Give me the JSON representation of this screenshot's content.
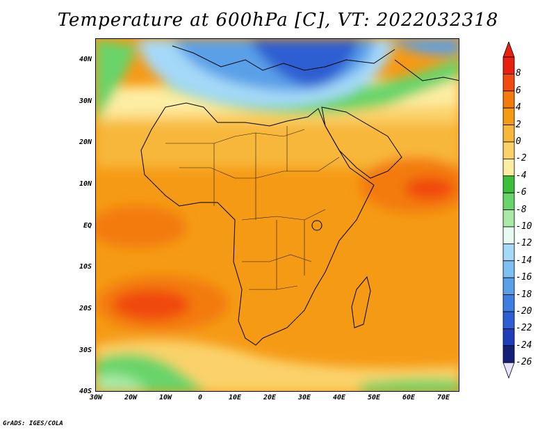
{
  "title": "Temperature at 600hPa [C], VT: 2022032318",
  "footer": "GrADS: IGES/COLA",
  "map": {
    "lon_range": [
      -30,
      75
    ],
    "lat_range": [
      -40,
      45
    ],
    "lat_ticks": [
      "40N",
      "30N",
      "20N",
      "10N",
      "EQ",
      "10S",
      "20S",
      "30S",
      "40S"
    ],
    "lon_ticks": [
      "30W",
      "20W",
      "10W",
      "0",
      "10E",
      "20E",
      "30E",
      "40E",
      "50E",
      "60E",
      "70E"
    ]
  },
  "colorbar": {
    "labels": [
      "8",
      "6",
      "4",
      "2",
      "0",
      "-2",
      "-4",
      "-6",
      "-8",
      "-10",
      "-12",
      "-14",
      "-16",
      "-18",
      "-20",
      "-22",
      "-24",
      "-26"
    ],
    "colors": [
      "#e82010",
      "#f04a10",
      "#f37a0d",
      "#f59a15",
      "#f7b73a",
      "#fbd26a",
      "#fdeda3",
      "#3cbf3c",
      "#69d46b",
      "#a8eaa6",
      "#e8fbf3",
      "#a5d9f8",
      "#7ec0f0",
      "#5aa0e8",
      "#3d7fe0",
      "#2d5fd2",
      "#1f3db8",
      "#142078"
    ]
  }
}
